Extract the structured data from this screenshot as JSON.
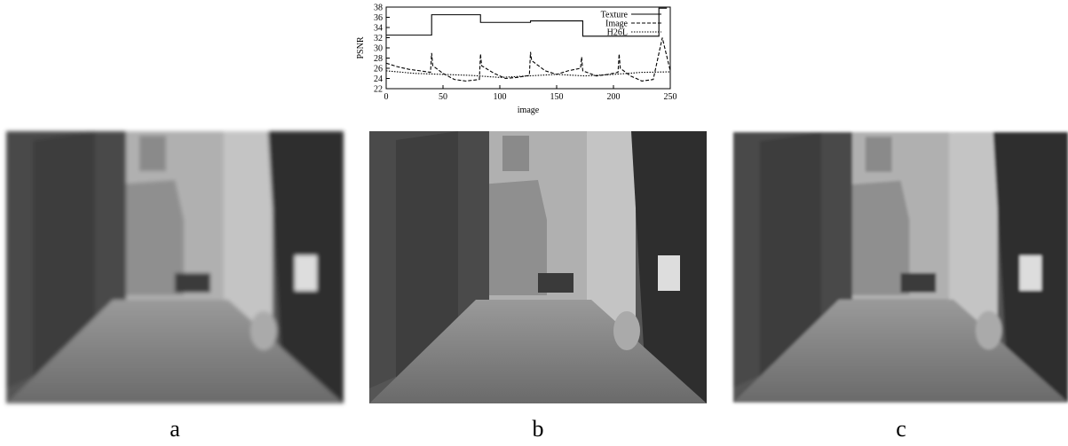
{
  "chart_data": {
    "type": "line",
    "xlabel": "image",
    "ylabel": "PSNR",
    "xlim": [
      0,
      250
    ],
    "xticks": [
      0,
      50,
      100,
      150,
      200,
      250
    ],
    "ylim": [
      22,
      38
    ],
    "yticks": [
      22,
      24,
      26,
      28,
      30,
      32,
      34,
      36,
      38
    ],
    "legend": "upper right",
    "series": [
      {
        "name": "Texture",
        "color": "#000000",
        "dash": "solid",
        "x": [
          0,
          40,
          40,
          83,
          83,
          127,
          127,
          173,
          173,
          240,
          240,
          247
        ],
        "values": [
          32.5,
          32.5,
          36.5,
          36.5,
          35,
          35,
          35.3,
          35.3,
          32.3,
          32.3,
          37.8,
          37.8
        ]
      },
      {
        "name": "Image",
        "color": "#000000",
        "dash": "dashed",
        "x": [
          0,
          10,
          20,
          30,
          39,
          40,
          41,
          50,
          60,
          70,
          82,
          83,
          84,
          95,
          105,
          115,
          126,
          127,
          128,
          140,
          150,
          160,
          171,
          172,
          173,
          185,
          195,
          204,
          205,
          206,
          215,
          225,
          235,
          243,
          250
        ],
        "values": [
          27,
          26.3,
          25.8,
          25.5,
          25.2,
          29,
          26.5,
          25,
          23.8,
          23.5,
          23.8,
          28.8,
          26.5,
          25,
          24,
          24.2,
          24.6,
          29.2,
          27.5,
          25.5,
          24.8,
          25.5,
          26,
          28.2,
          25.5,
          24.5,
          24.8,
          25.2,
          28.8,
          26,
          24.5,
          23.5,
          23.8,
          32,
          25.5
        ]
      },
      {
        "name": "H26L",
        "color": "#000000",
        "dash": "dotted",
        "x": [
          0,
          25,
          50,
          75,
          100,
          125,
          150,
          175,
          200,
          225,
          250
        ],
        "values": [
          25.5,
          25,
          24.8,
          24.6,
          24.2,
          24.5,
          24.8,
          24.5,
          24.8,
          25.2,
          25.3
        ]
      }
    ]
  },
  "images": {
    "labels": [
      "a",
      "b",
      "c"
    ]
  }
}
